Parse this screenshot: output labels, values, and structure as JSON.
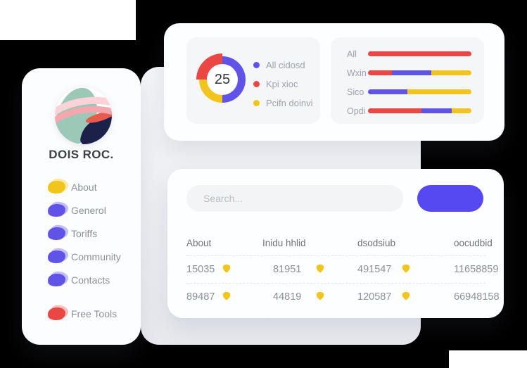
{
  "palette": {
    "red": "#ea4643",
    "blue": "#6054e8",
    "yellow": "#f2c51d",
    "light_red": "#f28b85",
    "light_blue": "#9488f0",
    "light_yellow": "#f7da5e",
    "button_blue": "#5649f2",
    "navy": "#1b2149",
    "teal": "#9cc8b7",
    "pink_light": "#fbd2d7",
    "pink": "#f6a7ae"
  },
  "sidebar": {
    "title": "DOIS ROC.",
    "items": [
      {
        "label": "About",
        "color": "yellow",
        "gap": false
      },
      {
        "label": "Generol",
        "color": "blue",
        "gap": false
      },
      {
        "label": "Toriffs",
        "color": "blue",
        "gap": false
      },
      {
        "label": "Community",
        "color": "blue",
        "gap": false
      },
      {
        "label": "Contacts",
        "color": "blue",
        "gap": false
      },
      {
        "label": "Free Tools",
        "color": "red",
        "gap": true
      }
    ]
  },
  "stats_card": {
    "donut": {
      "value": "25",
      "segments": [
        {
          "label": "All cidosd",
          "color": "blue",
          "percent": 50
        },
        {
          "label": "Pcifn doinvi",
          "color": "yellow",
          "percent": 25
        },
        {
          "label": "Kpi xioc",
          "color": "red",
          "percent": 25
        }
      ],
      "legend": [
        {
          "label": "All cidosd",
          "color": "blue"
        },
        {
          "label": "Kpi xioc",
          "color": "red"
        },
        {
          "label": "Pcifn doinvi",
          "color": "yellow"
        }
      ]
    },
    "bars": {
      "rows": [
        {
          "label": "All",
          "segments": [
            {
              "color": "red",
              "percent": 100
            }
          ]
        },
        {
          "label": "Wxin",
          "segments": [
            {
              "color": "red",
              "percent": 23
            },
            {
              "color": "blue",
              "percent": 38
            },
            {
              "color": "yellow",
              "percent": 39
            }
          ]
        },
        {
          "label": "Sico",
          "segments": [
            {
              "color": "blue",
              "percent": 38
            },
            {
              "color": "yellow",
              "percent": 62
            }
          ]
        },
        {
          "label": "Opdi",
          "segments": [
            {
              "color": "red",
              "percent": 52
            },
            {
              "color": "blue",
              "percent": 29
            },
            {
              "color": "yellow",
              "percent": 19
            }
          ]
        }
      ]
    }
  },
  "table_card": {
    "search_placeholder": "Search...",
    "headers": [
      "About",
      "Inidu hhlid",
      "dsodsiub",
      "oocudbid"
    ],
    "rows": [
      [
        {
          "text": "15035",
          "pick": true
        },
        {
          "text": "81951",
          "pick": true
        },
        {
          "text": "491547",
          "pick": true
        },
        {
          "text": "11658859",
          "pick": false
        }
      ],
      [
        {
          "text": "89487",
          "pick": true
        },
        {
          "text": "44819",
          "pick": true
        },
        {
          "text": "120587",
          "pick": true
        },
        {
          "text": "66948158",
          "pick": false
        }
      ]
    ]
  }
}
